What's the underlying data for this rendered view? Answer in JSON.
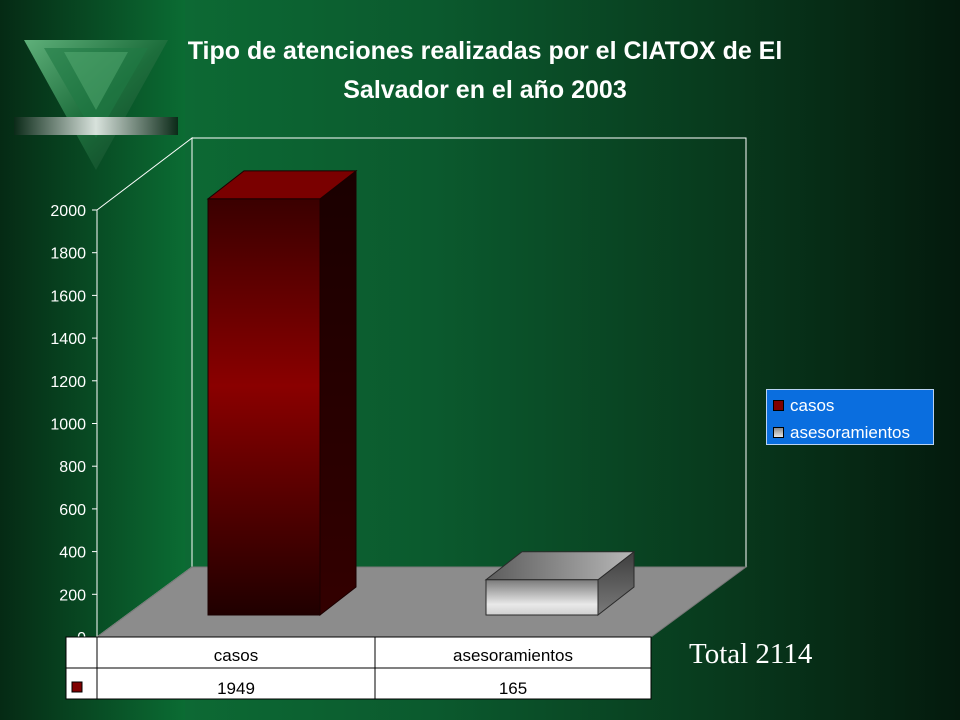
{
  "title": {
    "line1": "Tipo de atenciones realizadas por el CIATOX de El",
    "line2": "Salvador en el año 2003"
  },
  "total_label": "Total 2114",
  "colors": {
    "casos": "#800000",
    "asesoramientos": "#d8d8d8",
    "floor": "#8c8c8c",
    "legend_bg": "#0a6edf"
  },
  "chart_data": {
    "type": "bar",
    "title": "Tipo de atenciones realizadas por el CIATOX de El Salvador en el año 2003",
    "categories": [
      "casos",
      "asesoramientos"
    ],
    "series": [
      {
        "name": "casos",
        "values": [
          1949,
          165
        ]
      }
    ],
    "ylim": [
      0,
      2000
    ],
    "yticks": [
      0,
      200,
      400,
      600,
      800,
      1000,
      1200,
      1400,
      1600,
      1800,
      2000
    ],
    "legend": [
      "casos",
      "asesoramientos"
    ],
    "legend_placement": "right",
    "data_table": true,
    "three_d": true
  }
}
